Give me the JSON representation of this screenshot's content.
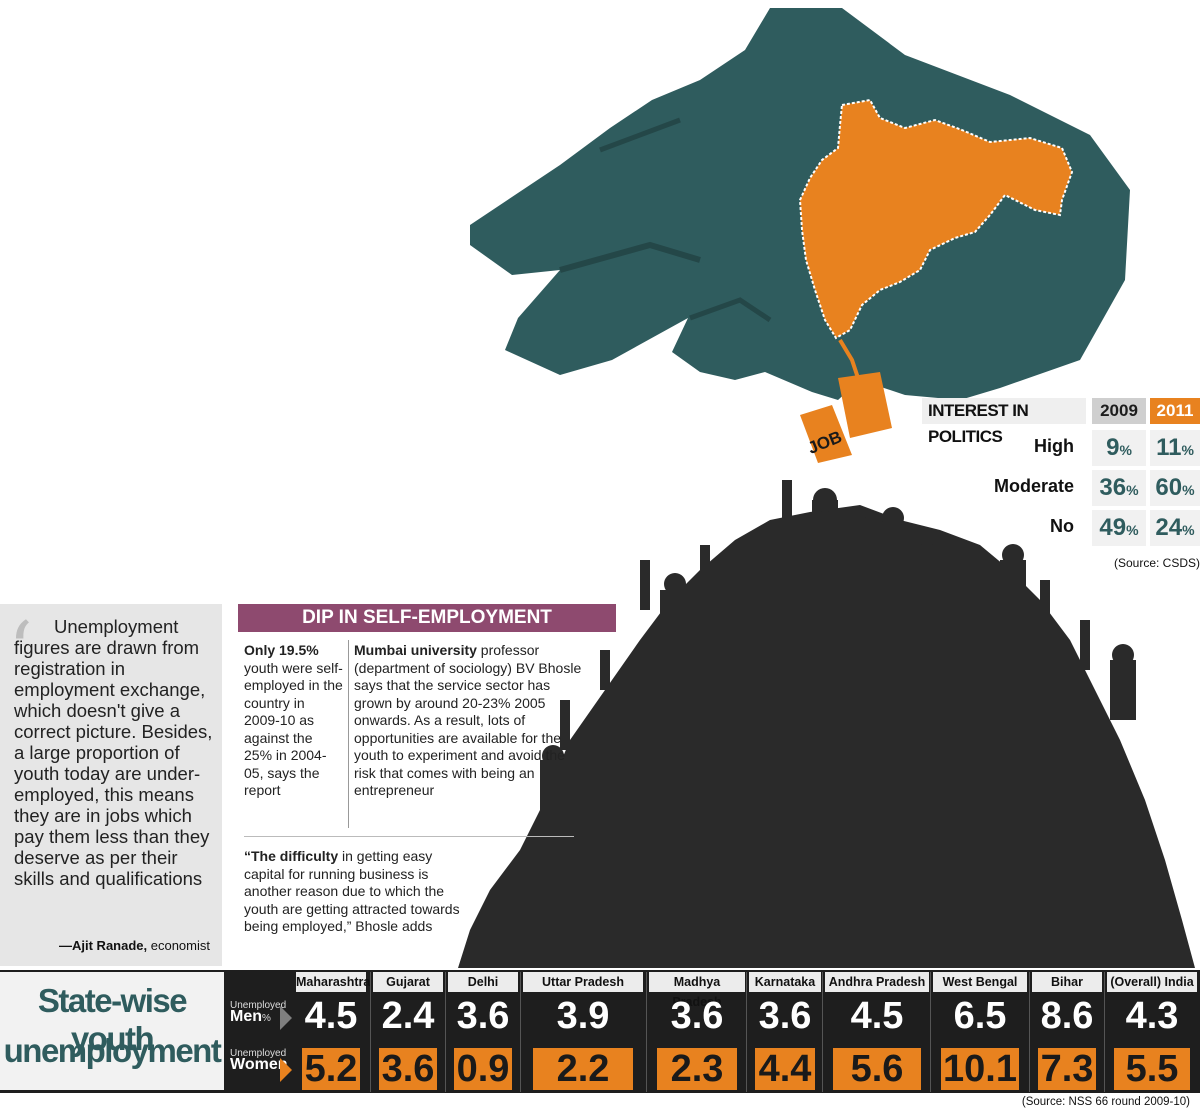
{
  "politics": {
    "title": "INTEREST IN POLITICS",
    "year1": "2009",
    "year2": "2011",
    "rows": [
      {
        "label": "High",
        "v2009": "9",
        "v2011": "11"
      },
      {
        "label": "Moderate",
        "v2009": "36",
        "v2011": "60"
      },
      {
        "label": "No",
        "v2009": "49",
        "v2011": "24"
      }
    ],
    "pct": "%",
    "source": "(Source: CSDS)"
  },
  "illustration": {
    "tag": "JOB",
    "colors": {
      "hand": "#2f5c5e",
      "map": "#e8821f",
      "crowd": "#2a2a2a"
    }
  },
  "quote": {
    "text": "Unemployment figures are drawn from registration in employment exchange, which doesn't give a correct picture. Besides, a large proportion of youth today are under-employed, this means they are in jobs which pay them less than they deserve as per their skills and qualifications",
    "author": "—Ajit Ranade,",
    "role": " economist"
  },
  "dip": {
    "heading": "DIP IN SELF-EMPLOYMENT",
    "col1_bold": "Only 19.5%",
    "col1_text": " youth were self-employed in the country in 2009-10 as against the 25% in 2004-05, says the report",
    "col2_bold": "Mumbai university",
    "col2_text": " professor (department of sociology) BV Bhosle says that the service sector has grown by  around 20-23% 2005 onwards. As a result, lots of opportunities are available for the youth to experiment and avoid the risk that comes with being an entrepreneur",
    "p3_bold": "“The difficulty",
    "p3_text": " in getting easy capital for running business is another reason due to which the youth are getting attracted towards being employed,” Bhosle adds"
  },
  "state": {
    "title_line1": "State-wise youth",
    "title_line2": "unemployment",
    "men_small": "Unemployed",
    "men_big": "Men",
    "men_unit": "%",
    "women_small": "Unemployed",
    "women_big": "Women",
    "states": [
      "Maharashtra",
      "Gujarat",
      "Delhi",
      "Uttar Pradesh",
      "Madhya Pradesh",
      "Karnataka",
      "Andhra Pradesh",
      "West Bengal",
      "Bihar",
      "(Overall) India"
    ],
    "men": [
      "4.5",
      "2.4",
      "3.6",
      "3.9",
      "3.6",
      "3.6",
      "4.5",
      "6.5",
      "8.6",
      "4.3"
    ],
    "women": [
      "5.2",
      "3.6",
      "0.9",
      "2.2",
      "2.3",
      "4.4",
      "5.6",
      "10.1",
      "7.3",
      "5.5"
    ],
    "source": "(Source: NSS 66 round 2009-10)"
  }
}
